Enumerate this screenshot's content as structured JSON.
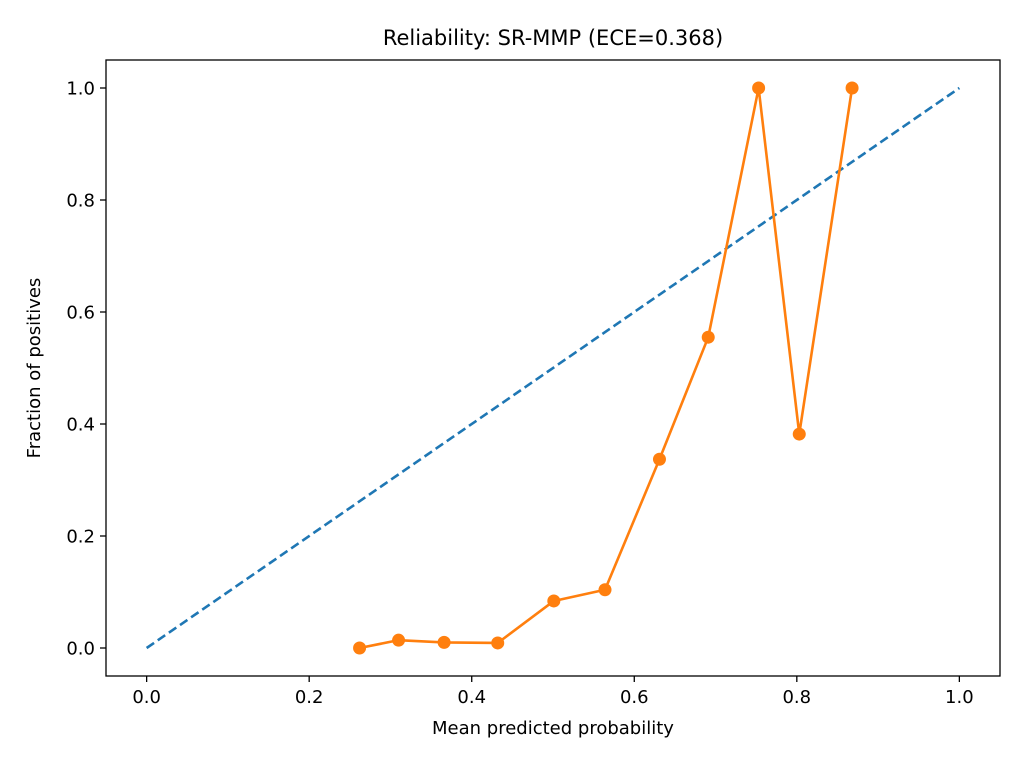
{
  "chart_data": {
    "type": "line",
    "title": "Reliability: SR-MMP (ECE=0.368)",
    "xlabel": "Mean predicted probability",
    "ylabel": "Fraction of positives",
    "xlim": [
      -0.05,
      1.05
    ],
    "ylim": [
      -0.05,
      1.05
    ],
    "xticks": [
      0.0,
      0.2,
      0.4,
      0.6,
      0.8,
      1.0
    ],
    "yticks": [
      0.0,
      0.2,
      0.4,
      0.6,
      0.8,
      1.0
    ],
    "xtick_labels": [
      "0.0",
      "0.2",
      "0.4",
      "0.6",
      "0.8",
      "1.0"
    ],
    "ytick_labels": [
      "0.0",
      "0.2",
      "0.4",
      "0.6",
      "0.8",
      "1.0"
    ],
    "grid": false,
    "series": [
      {
        "style": "dashed",
        "color": "#1f77b4",
        "markers": false,
        "x": [
          0.0,
          1.0
        ],
        "y": [
          0.0,
          1.0
        ]
      },
      {
        "style": "solid",
        "color": "#ff7f0e",
        "markers": true,
        "x": [
          0.262,
          0.31,
          0.366,
          0.432,
          0.501,
          0.564,
          0.631,
          0.691,
          0.753,
          0.803,
          0.868
        ],
        "y": [
          0.0,
          0.014,
          0.01,
          0.009,
          0.084,
          0.104,
          0.337,
          0.555,
          1.0,
          0.382,
          1.0
        ]
      }
    ]
  }
}
